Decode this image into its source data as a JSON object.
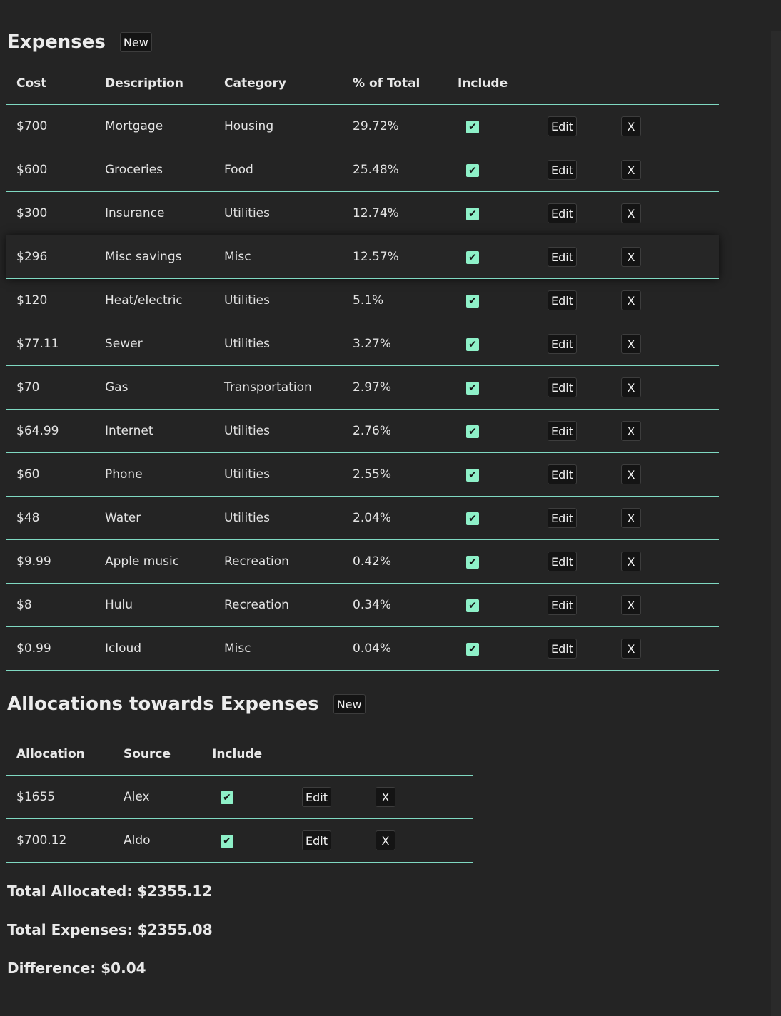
{
  "expenses": {
    "title": "Expenses",
    "new_label": "New",
    "columns": [
      "Cost",
      "Description",
      "Category",
      "% of Total",
      "Include"
    ],
    "edit_label": "Edit",
    "delete_label": "X",
    "check_glyph": "✔",
    "rows": [
      {
        "cost": "$700",
        "description": "Mortgage",
        "category": "Housing",
        "percent": "29.72%",
        "include": true
      },
      {
        "cost": "$600",
        "description": "Groceries",
        "category": "Food",
        "percent": "25.48%",
        "include": true
      },
      {
        "cost": "$300",
        "description": "Insurance",
        "category": "Utilities",
        "percent": "12.74%",
        "include": true
      },
      {
        "cost": "$296",
        "description": "Misc savings",
        "category": "Misc",
        "percent": "12.57%",
        "include": true,
        "hovered": true
      },
      {
        "cost": "$120",
        "description": "Heat/electric",
        "category": "Utilities",
        "percent": "5.1%",
        "include": true
      },
      {
        "cost": "$77.11",
        "description": "Sewer",
        "category": "Utilities",
        "percent": "3.27%",
        "include": true
      },
      {
        "cost": "$70",
        "description": "Gas",
        "category": "Transportation",
        "percent": "2.97%",
        "include": true
      },
      {
        "cost": "$64.99",
        "description": "Internet",
        "category": "Utilities",
        "percent": "2.76%",
        "include": true
      },
      {
        "cost": "$60",
        "description": "Phone",
        "category": "Utilities",
        "percent": "2.55%",
        "include": true
      },
      {
        "cost": "$48",
        "description": "Water",
        "category": "Utilities",
        "percent": "2.04%",
        "include": true
      },
      {
        "cost": "$9.99",
        "description": "Apple music",
        "category": "Recreation",
        "percent": "0.42%",
        "include": true
      },
      {
        "cost": "$8",
        "description": "Hulu",
        "category": "Recreation",
        "percent": "0.34%",
        "include": true
      },
      {
        "cost": "$0.99",
        "description": "Icloud",
        "category": "Misc",
        "percent": "0.04%",
        "include": true
      }
    ]
  },
  "allocations": {
    "title": "Allocations towards Expenses",
    "new_label": "New",
    "columns": [
      "Allocation",
      "Source",
      "Include"
    ],
    "edit_label": "Edit",
    "delete_label": "X",
    "check_glyph": "✔",
    "rows": [
      {
        "allocation": "$1655",
        "source": "Alex",
        "include": true
      },
      {
        "allocation": "$700.12",
        "source": "Aldo",
        "include": true
      }
    ]
  },
  "totals": {
    "allocated": "Total Allocated: $2355.12",
    "expenses": "Total Expenses: $2355.08",
    "difference": "Difference: $0.04"
  },
  "colors": {
    "background": "#242424",
    "row_divider": "#7fd9c2",
    "checkbox": "#8ef0c8",
    "button_bg": "#141414"
  },
  "icons": {
    "checkbox": "checkbox-checked-icon",
    "delete": "close-icon"
  }
}
